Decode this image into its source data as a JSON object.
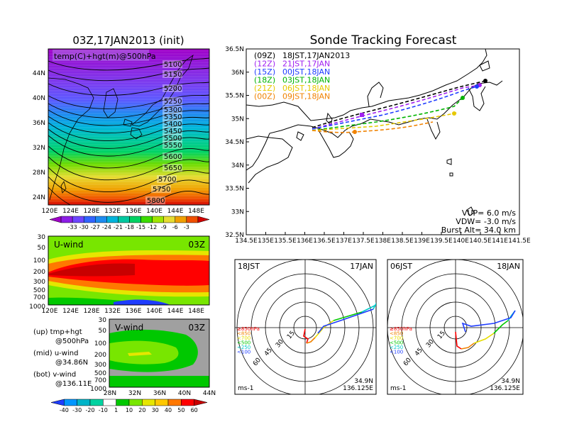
{
  "colors": {
    "black": "#000000",
    "sonde_09z": "#000000",
    "sonde_12z": "#a020f0",
    "sonde_15z": "#1e3cff",
    "sonde_18z": "#00b400",
    "sonde_21z": "#e6c800",
    "sonde_00z": "#f08200",
    "hodo_red": "#ff0000",
    "hodo_orange": "#f08200",
    "hodo_yellow": "#e6dc00",
    "hodo_green": "#00c800",
    "hodo_cyan": "#00c8c8",
    "hodo_blue": "#1e3cff"
  },
  "temp_colorbar": {
    "labels": [
      "-33",
      "-30",
      "-27",
      "-24",
      "-21",
      "-18",
      "-15",
      "-12",
      "-9",
      "-6",
      "-3"
    ],
    "colors": [
      "#a000c8",
      "#8c1ee6",
      "#6e46ff",
      "#3264ff",
      "#1e8cf0",
      "#00b4dc",
      "#00c8a0",
      "#00d264",
      "#3cdc00",
      "#a0e600",
      "#e6dc32",
      "#f0a000",
      "#f05000",
      "#d20000"
    ]
  },
  "wind_colorbar": {
    "labels": [
      "-40",
      "-30",
      "-20",
      "-10",
      "1",
      "10",
      "20",
      "30",
      "40",
      "50",
      "60"
    ],
    "colors": [
      "#1e3cff",
      "#0096ff",
      "#00b4c8",
      "#00d2a0",
      "#ffffff",
      "#00c800",
      "#78e600",
      "#e6e600",
      "#ffc800",
      "#ff7800",
      "#ff0000",
      "#c80000"
    ]
  },
  "map_panel": {
    "title": "03Z,17JAN2013 (init)",
    "label": "temp(C)+hgt(m)@500hPa",
    "lat_labels": [
      "44N",
      "40N",
      "36N",
      "32N",
      "28N",
      "24N"
    ],
    "lon_labels": [
      "120E",
      "124E",
      "128E",
      "132E",
      "136E",
      "140E",
      "144E",
      "148E"
    ],
    "contour_labels": [
      "5100",
      "5150",
      "5200",
      "5250",
      "5300",
      "5350",
      "5400",
      "5450",
      "5500",
      "5550",
      "5600",
      "5650",
      "5700",
      "5750",
      "5800"
    ]
  },
  "uwind_panel": {
    "label": "U-wind",
    "time": "03Z",
    "pressure_labels": [
      "30",
      "50",
      "100",
      "200",
      "300",
      "500",
      "700",
      "1000"
    ],
    "lon_labels": [
      "120E",
      "124E",
      "128E",
      "132E",
      "136E",
      "140E",
      "144E",
      "148E"
    ]
  },
  "vwind_panel": {
    "label": "V-wind",
    "time": "03Z",
    "pressure_labels": [
      "30",
      "50",
      "100",
      "200",
      "300",
      "500",
      "700",
      "1000"
    ],
    "lat_labels": [
      "28N",
      "32N",
      "36N",
      "40N",
      "44N"
    ]
  },
  "legend": {
    "up_line1": "(up) tmp+hgt",
    "up_line2": "@500hPa",
    "mid_line1": "(mid) u-wind",
    "mid_line2": "@34.86N",
    "bot_line1": "(bot) v-wind",
    "bot_line2": "@136.11E"
  },
  "track_panel": {
    "title": "Sonde Tracking Forecast",
    "lat_labels": [
      "36.5N",
      "36N",
      "35.5N",
      "35N",
      "34.5N",
      "34N",
      "33.5N",
      "33N",
      "32.5N"
    ],
    "lon_labels": [
      "134.5E",
      "135E",
      "135.5E",
      "136E",
      "136.5E",
      "137E",
      "137.5E",
      "138E",
      "138.5E",
      "139E",
      "139.5E",
      "140E",
      "140.5E",
      "141E",
      "141.5E"
    ],
    "launches": [
      {
        "code": "(09Z)",
        "text": "18JST,17JAN2013"
      },
      {
        "code": "(12Z)",
        "text": "21JST,17JAN"
      },
      {
        "code": "(15Z)",
        "text": "00JST,18JAN"
      },
      {
        "code": "(18Z)",
        "text": "03JST,18JAN"
      },
      {
        "code": "(21Z)",
        "text": "06JST,18JAN"
      },
      {
        "code": "(00Z)",
        "text": "09JST,18JAN"
      }
    ],
    "params": {
      "vup": "VUP= 6.0 m/s",
      "vdw": "VDW= -3.0 m/s",
      "burst": "Burst Alt= 34.0 km"
    }
  },
  "hodographs": [
    {
      "left_label": "18JST",
      "right_label": "17JAN",
      "ring_labels": [
        "15",
        "30",
        "45",
        "60"
      ],
      "levels": [
        "≥850hPa",
        "<850",
        "<700",
        "<500",
        "<250",
        "<100"
      ],
      "unit": "ms-1",
      "coord_lat": "34.9N",
      "coord_lon": "136.125E"
    },
    {
      "left_label": "06JST",
      "right_label": "18JAN",
      "ring_labels": [
        "15",
        "30",
        "45",
        "60"
      ],
      "levels": [
        "≥850hPa",
        "<850",
        "<700",
        "<500",
        "<250",
        "<100"
      ],
      "unit": "ms-1",
      "coord_lat": "34.9N",
      "coord_lon": "136.125E"
    }
  ]
}
